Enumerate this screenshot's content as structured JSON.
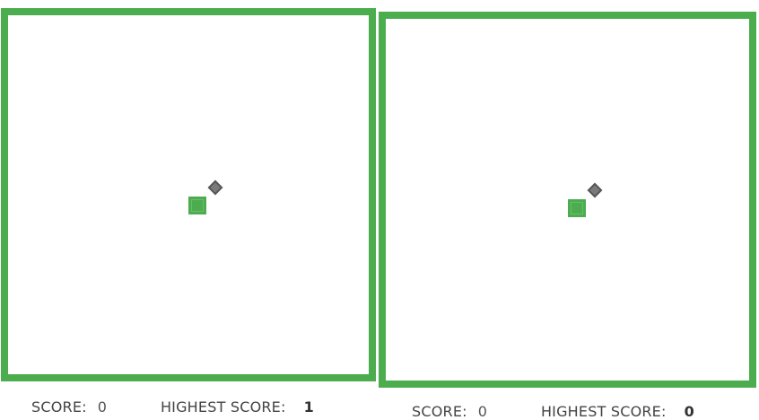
{
  "theme": {
    "border_color": "#4cad4f",
    "snake_color": "#4cad4f",
    "food_color": "#555555"
  },
  "games": [
    {
      "score_label": "SCORE:",
      "score": "0",
      "highest_label": "HIGHEST SCORE:",
      "highest_score": "1"
    },
    {
      "score_label": "SCORE:",
      "score": "0",
      "highest_label": "HIGHEST SCORE:",
      "highest_score": "0"
    }
  ]
}
